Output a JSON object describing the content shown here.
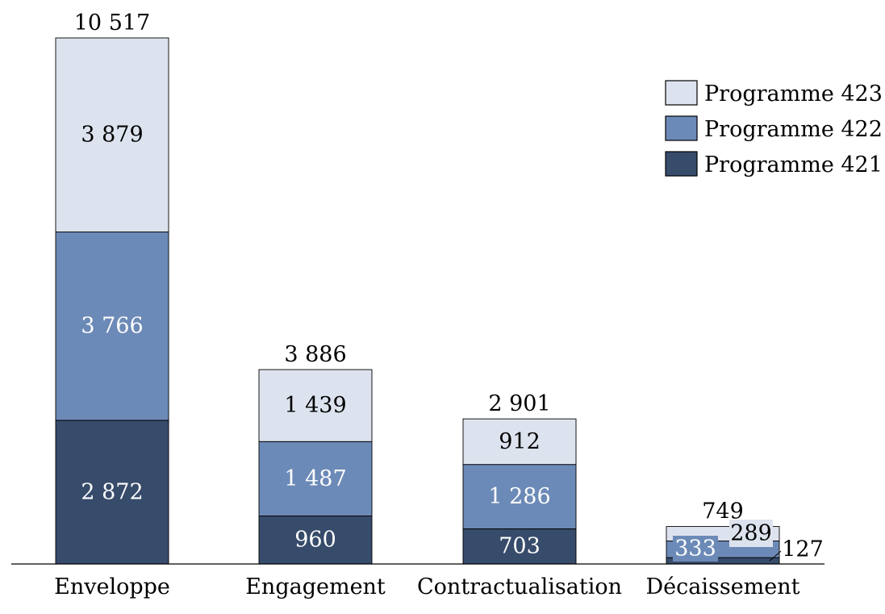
{
  "chart_data": {
    "type": "bar",
    "stacked": true,
    "categories": [
      "Enveloppe",
      "Engagement",
      "Contractualisation",
      "Décaissement"
    ],
    "series": [
      {
        "name": "Programme 421",
        "values": [
          2872,
          960,
          703,
          127
        ],
        "value_labels": [
          "2 872",
          "960",
          "703",
          "127"
        ],
        "color": "#374b6b",
        "label_color": "#ffffff"
      },
      {
        "name": "Programme 422",
        "values": [
          3766,
          1487,
          1286,
          333
        ],
        "value_labels": [
          "3 766",
          "1 487",
          "1 286",
          "333"
        ],
        "color": "#6c8ab7",
        "label_color": "#ffffff"
      },
      {
        "name": "Programme 423",
        "values": [
          3879,
          1439,
          912,
          289
        ],
        "value_labels": [
          "3 879",
          "1 439",
          "912",
          "289"
        ],
        "color": "#dde3ee",
        "label_color": "#000000"
      }
    ],
    "totals": [
      10517,
      3886,
      2901,
      749
    ],
    "total_labels": [
      "10 517",
      "3 886",
      "2 901",
      "749"
    ],
    "legend": {
      "position": "top-right",
      "entries": [
        "Programme 423",
        "Programme 422",
        "Programme 421"
      ]
    },
    "ylim": [
      0,
      10517
    ],
    "grid": false,
    "title": "",
    "xlabel": "",
    "ylabel": ""
  }
}
